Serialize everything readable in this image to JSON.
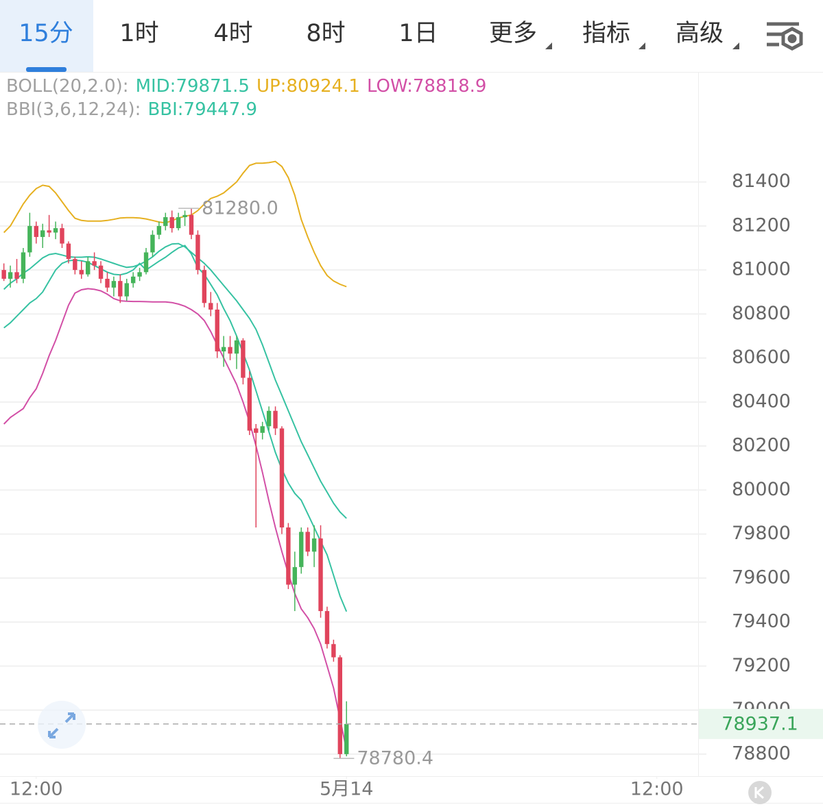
{
  "tabs": {
    "items": [
      "15分",
      "1时",
      "4时",
      "8时",
      "1日",
      "更多",
      "指标",
      "高级"
    ],
    "selected": 0
  },
  "chart_data": {
    "type": "candlestick",
    "legend": [
      [
        {
          "text": "BOLL(20,2.0):",
          "color": "#a0a0a0"
        },
        {
          "text": "MID:79871.5",
          "color": "#36c2a2"
        },
        {
          "text": "UP:80924.1",
          "color": "#e6b020"
        },
        {
          "text": "LOW:78818.9",
          "color": "#d24fa6"
        }
      ],
      [
        {
          "text": "BBI(3,6,12,24):",
          "color": "#a0a0a0"
        },
        {
          "text": "BBI:79447.9",
          "color": "#36c2a2"
        }
      ]
    ],
    "x": [
      10.75,
      11,
      11.25,
      11.5,
      11.75,
      12,
      12.25,
      12.5,
      12.75,
      13,
      13.25,
      13.5,
      13.75,
      14,
      14.25,
      14.5,
      14.75,
      15,
      15.25,
      15.5,
      15.75,
      16,
      16.25,
      16.5,
      16.75,
      17,
      17.25,
      17.5,
      17.75,
      18,
      18.25,
      18.5,
      18.75,
      19,
      19.25,
      19.5,
      19.75,
      20,
      20.25,
      20.5,
      20.75,
      21,
      21.25,
      21.5,
      21.75,
      22,
      22.25,
      22.5,
      22.75,
      23,
      23.25,
      23.5,
      23.75,
      24
    ],
    "open": [
      81000,
      80960,
      80990,
      80960,
      81080,
      81200,
      81150,
      81180,
      81170,
      81190,
      81120,
      81050,
      81000,
      80980,
      81040,
      81020,
      80960,
      80920,
      80950,
      80880,
      80940,
      80970,
      80990,
      81080,
      81160,
      81200,
      81240,
      81190,
      81240,
      81250,
      81160,
      81000,
      80850,
      80820,
      80630,
      80650,
      80620,
      80680,
      80510,
      80280,
      80260,
      80290,
      80360,
      80280,
      79830,
      79570,
      79650,
      79810,
      79720,
      79780,
      79450,
      79300,
      79240,
      78800
    ],
    "high": [
      81030,
      81020,
      81050,
      81100,
      81260,
      81220,
      81210,
      81250,
      81220,
      81210,
      81130,
      81060,
      81040,
      81060,
      81080,
      81040,
      80990,
      80970,
      80980,
      80960,
      80990,
      81010,
      81100,
      81180,
      81220,
      81260,
      81270,
      81260,
      81270,
      81280,
      81180,
      81020,
      80900,
      80850,
      80700,
      80700,
      80700,
      80690,
      80540,
      80300,
      80310,
      80380,
      80380,
      80290,
      79850,
      79720,
      79830,
      79830,
      79840,
      79840,
      79470,
      79320,
      79250,
      79040
    ],
    "low": [
      80950,
      80920,
      80940,
      80940,
      81060,
      81120,
      81100,
      81150,
      81140,
      81100,
      81030,
      80980,
      80960,
      80970,
      81000,
      80940,
      80900,
      80880,
      80850,
      80860,
      80920,
      80950,
      80980,
      81060,
      81140,
      81180,
      81170,
      81180,
      81200,
      81140,
      80980,
      80830,
      80790,
      80600,
      80560,
      80590,
      80550,
      80480,
      80250,
      79830,
      80230,
      80270,
      80250,
      79800,
      79550,
      79450,
      79620,
      79700,
      79650,
      79420,
      79280,
      79220,
      78780.4,
      78790
    ],
    "close": [
      80960,
      80990,
      80960,
      81080,
      81200,
      81150,
      81180,
      81170,
      81190,
      81120,
      81050,
      81000,
      80980,
      81040,
      81020,
      80960,
      80920,
      80950,
      80880,
      80940,
      80970,
      80990,
      81080,
      81160,
      81200,
      81240,
      81190,
      81240,
      81250,
      81160,
      81000,
      80850,
      80820,
      80630,
      80650,
      80620,
      80680,
      80510,
      80270,
      80260,
      80290,
      80360,
      80280,
      79830,
      79570,
      79650,
      79810,
      79720,
      79780,
      79450,
      79300,
      79240,
      78800,
      78937.1
    ],
    "up_color": "#45b45a",
    "down_color": "#e0445c",
    "overlays": [
      {
        "color": "#e6b020",
        "values": [
          81170,
          81200,
          81250,
          81300,
          81340,
          81370,
          81385,
          81380,
          81350,
          81310,
          81270,
          81235,
          81225,
          81222,
          81222,
          81222,
          81225,
          81230,
          81236,
          81238,
          81238,
          81236,
          81232,
          81225,
          81218,
          81214,
          81224,
          81236,
          81244,
          81250,
          81270,
          81300,
          81325,
          81335,
          81350,
          81375,
          81400,
          81440,
          81475,
          81485,
          81485,
          81488,
          81493,
          81470,
          81420,
          81340,
          81230,
          81150,
          81080,
          81020,
          80975,
          80950,
          80935,
          80924.1
        ]
      },
      {
        "color": "#36c2a2",
        "values": [
          80912,
          80940,
          80960,
          80985,
          81005,
          81030,
          81055,
          81070,
          81075,
          81068,
          81060,
          81058,
          81058,
          81060,
          81058,
          81050,
          81040,
          81030,
          81020,
          81012,
          81015,
          81025,
          81040,
          81060,
          81085,
          81105,
          81118,
          81120,
          81105,
          81080,
          81055,
          81030,
          81000,
          80965,
          80930,
          80895,
          80860,
          80820,
          80780,
          80730,
          80660,
          80580,
          80500,
          80430,
          80360,
          80290,
          80220,
          80160,
          80100,
          80040,
          79990,
          79940,
          79900,
          79871.5
        ]
      },
      {
        "color": "#d24fa6",
        "values": [
          80300,
          80330,
          80350,
          80370,
          80420,
          80460,
          80530,
          80610,
          80680,
          80760,
          80840,
          80895,
          80910,
          80915,
          80912,
          80905,
          80890,
          80870,
          80860,
          80858,
          80857,
          80857,
          80856,
          80855,
          80855,
          80855,
          80852,
          80845,
          80835,
          80820,
          80800,
          80770,
          80720,
          80660,
          80600,
          80540,
          80480,
          80400,
          80310,
          80200,
          80080,
          79950,
          79830,
          79720,
          79620,
          79530,
          79460,
          79420,
          79370,
          79300,
          79200,
          79100,
          78960,
          78818.9
        ]
      },
      {
        "color": "#36c2a2",
        "values": [
          80737,
          80760,
          80790,
          80820,
          80850,
          80870,
          80900,
          80950,
          81000,
          81030,
          81042,
          81045,
          81042,
          81035,
          81020,
          81005,
          80990,
          80980,
          80978,
          80985,
          81000,
          81030,
          81000,
          81020,
          81040,
          81058,
          81080,
          81100,
          81111,
          81073,
          81011,
          80980,
          80934,
          80887,
          80825,
          80769,
          80700,
          80623,
          80545,
          80451,
          80358,
          80265,
          80171,
          80094,
          80032,
          79985,
          79954,
          79892,
          79830,
          79767,
          79705,
          79612,
          79518,
          79447.9
        ]
      }
    ],
    "annotations": [
      {
        "x": 17.5,
        "value": 81280,
        "label": "81280.0"
      },
      {
        "x": 23.5,
        "value": 78780.4,
        "label": "78780.4"
      }
    ],
    "price_line": {
      "value": 78937.1,
      "label": "78937.1",
      "color": "#3aa55a"
    },
    "xlim": [
      10.6,
      37.6
    ],
    "xticks": [
      {
        "value": 12,
        "label": "12:00"
      },
      {
        "value": 24,
        "label": "5月14"
      },
      {
        "value": 36,
        "label": "12:00"
      }
    ],
    "ylim": [
      78700,
      81900
    ],
    "yticks": [
      78800,
      79000,
      79200,
      79400,
      79600,
      79800,
      80000,
      80200,
      80400,
      80600,
      80800,
      81000,
      81200,
      81400
    ],
    "grid": true
  }
}
